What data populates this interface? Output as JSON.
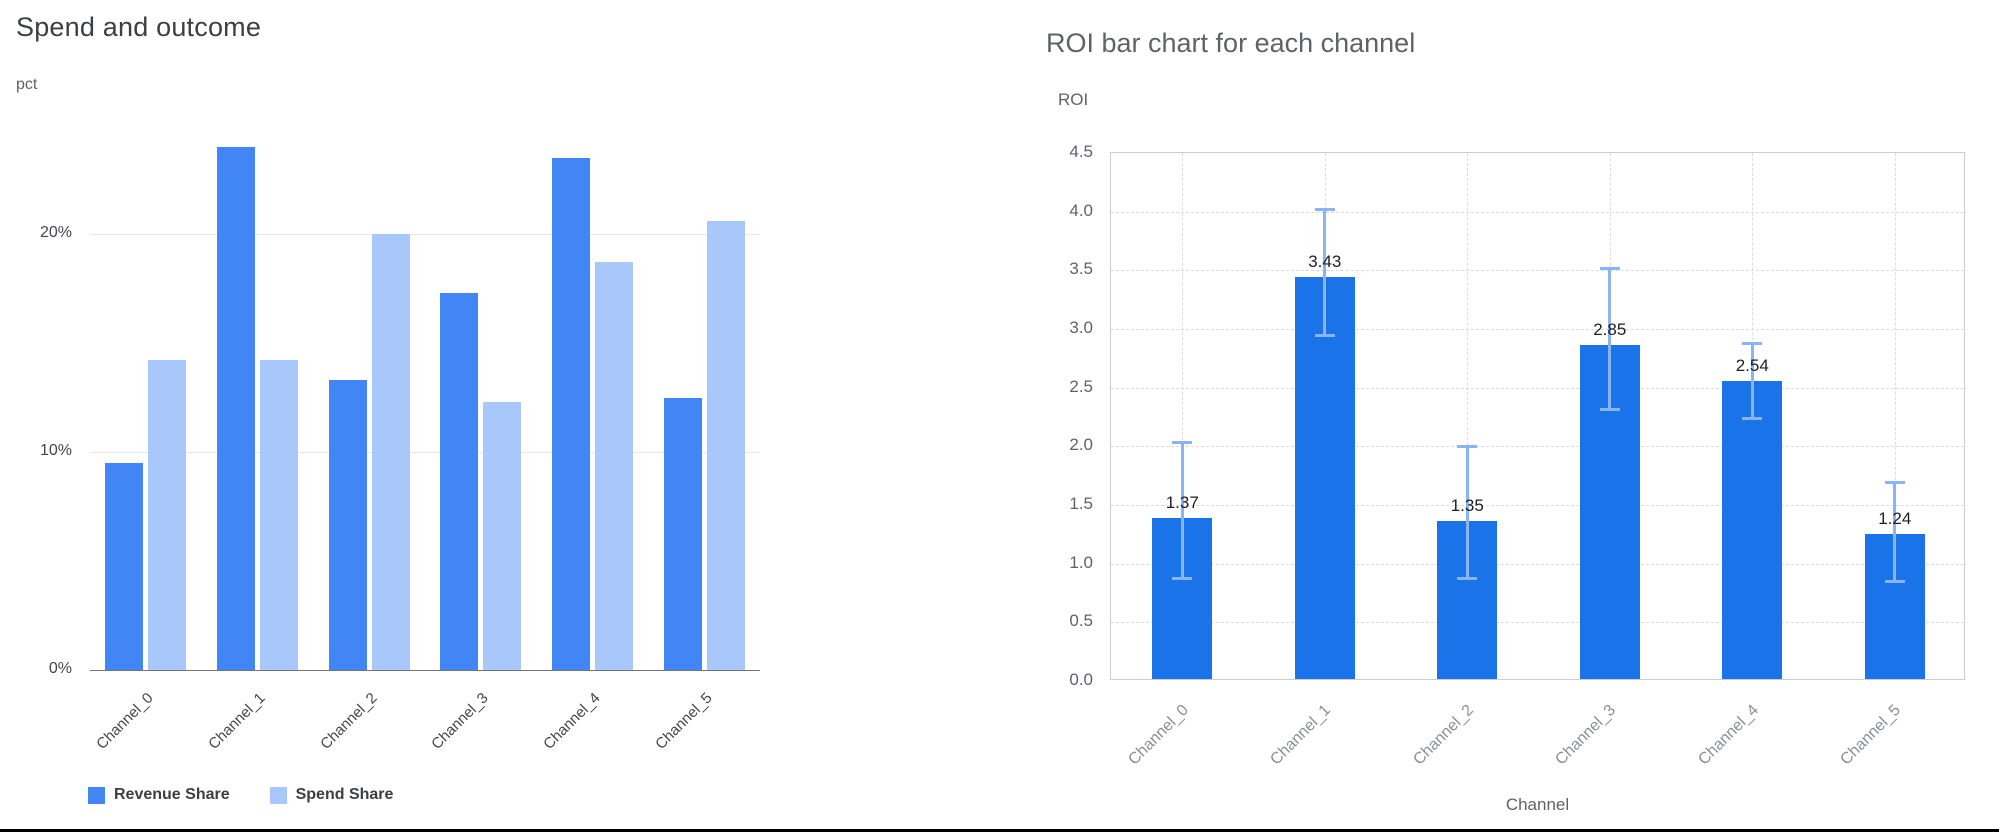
{
  "chart_data": [
    {
      "type": "bar",
      "title": "Spend and outcome",
      "xlabel": "",
      "ylabel": "pct",
      "categories": [
        "Channel_0",
        "Channel_1",
        "Channel_2",
        "Channel_3",
        "Channel_4",
        "Channel_5"
      ],
      "series": [
        {
          "name": "Revenue Share",
          "color": "#4285f4",
          "values": [
            9.5,
            24.0,
            13.3,
            17.3,
            23.5,
            12.5
          ]
        },
        {
          "name": "Spend Share",
          "color": "#a8c7fa",
          "values": [
            14.2,
            14.2,
            20.0,
            12.3,
            18.7,
            20.6
          ]
        }
      ],
      "ylim": [
        0,
        25
      ],
      "y_tick_values": [
        0,
        10,
        20
      ],
      "y_tick_labels": [
        "0%",
        "10%",
        "20%"
      ],
      "grid": true,
      "legend_position": "bottom"
    },
    {
      "type": "bar",
      "title": "ROI bar chart for each channel",
      "xlabel": "Channel",
      "ylabel": "ROI",
      "categories": [
        "Channel_0",
        "Channel_1",
        "Channel_2",
        "Channel_3",
        "Channel_4",
        "Channel_5"
      ],
      "values": [
        1.37,
        3.43,
        1.35,
        2.85,
        2.54,
        1.24
      ],
      "data_labels": [
        "1.37",
        "3.43",
        "1.35",
        "2.85",
        "2.54",
        "1.24"
      ],
      "error_low": [
        0.88,
        2.95,
        0.88,
        2.32,
        2.24,
        0.85
      ],
      "error_high": [
        2.04,
        4.02,
        2.0,
        3.52,
        2.88,
        1.7
      ],
      "bar_color": "#1a73e8",
      "error_color": "#8ab4f8",
      "ylim": [
        0,
        4.5
      ],
      "y_tick_values": [
        0,
        0.5,
        1.0,
        1.5,
        2.0,
        2.5,
        3.0,
        3.5,
        4.0,
        4.5
      ],
      "y_tick_labels": [
        "0.0",
        "0.5",
        "1.0",
        "1.5",
        "2.0",
        "2.5",
        "3.0",
        "3.5",
        "4.0",
        "4.5"
      ],
      "grid": "dashed",
      "legend_position": "none"
    }
  ]
}
